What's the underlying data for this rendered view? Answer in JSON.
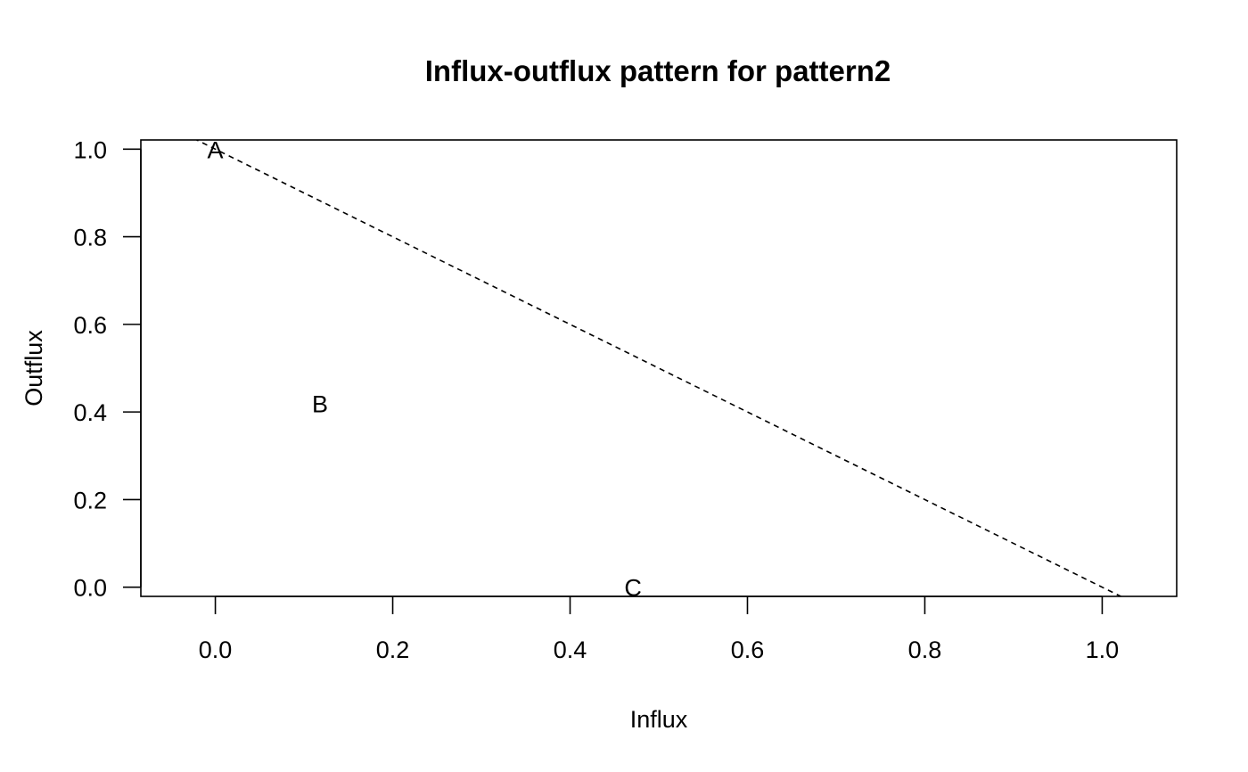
{
  "chart_data": {
    "type": "scatter",
    "title": "Influx-outflux pattern for pattern2",
    "xlabel": "Influx",
    "ylabel": "Outflux",
    "xlim": [
      -0.084,
      1.084
    ],
    "ylim": [
      -0.021,
      1.021
    ],
    "xticks": [
      0.0,
      0.2,
      0.4,
      0.6,
      0.8,
      1.0
    ],
    "xtick_labels": [
      "0.0",
      "0.2",
      "0.4",
      "0.6",
      "0.8",
      "1.0"
    ],
    "yticks": [
      0.0,
      0.2,
      0.4,
      0.6,
      0.8,
      1.0
    ],
    "ytick_labels": [
      "0.0",
      "0.2",
      "0.4",
      "0.6",
      "0.8",
      "1.0"
    ],
    "points": [
      {
        "label": "A",
        "x": 0.0,
        "y": 1.0
      },
      {
        "label": "B",
        "x": 0.118,
        "y": 0.42
      },
      {
        "label": "C",
        "x": 0.471,
        "y": 0.0
      }
    ],
    "reference_line": {
      "style": "dashed",
      "intercept": 1,
      "slope": -1
    },
    "grid": false,
    "colors": {
      "text": "#000000",
      "lines": "#000000",
      "background": "#ffffff"
    }
  }
}
